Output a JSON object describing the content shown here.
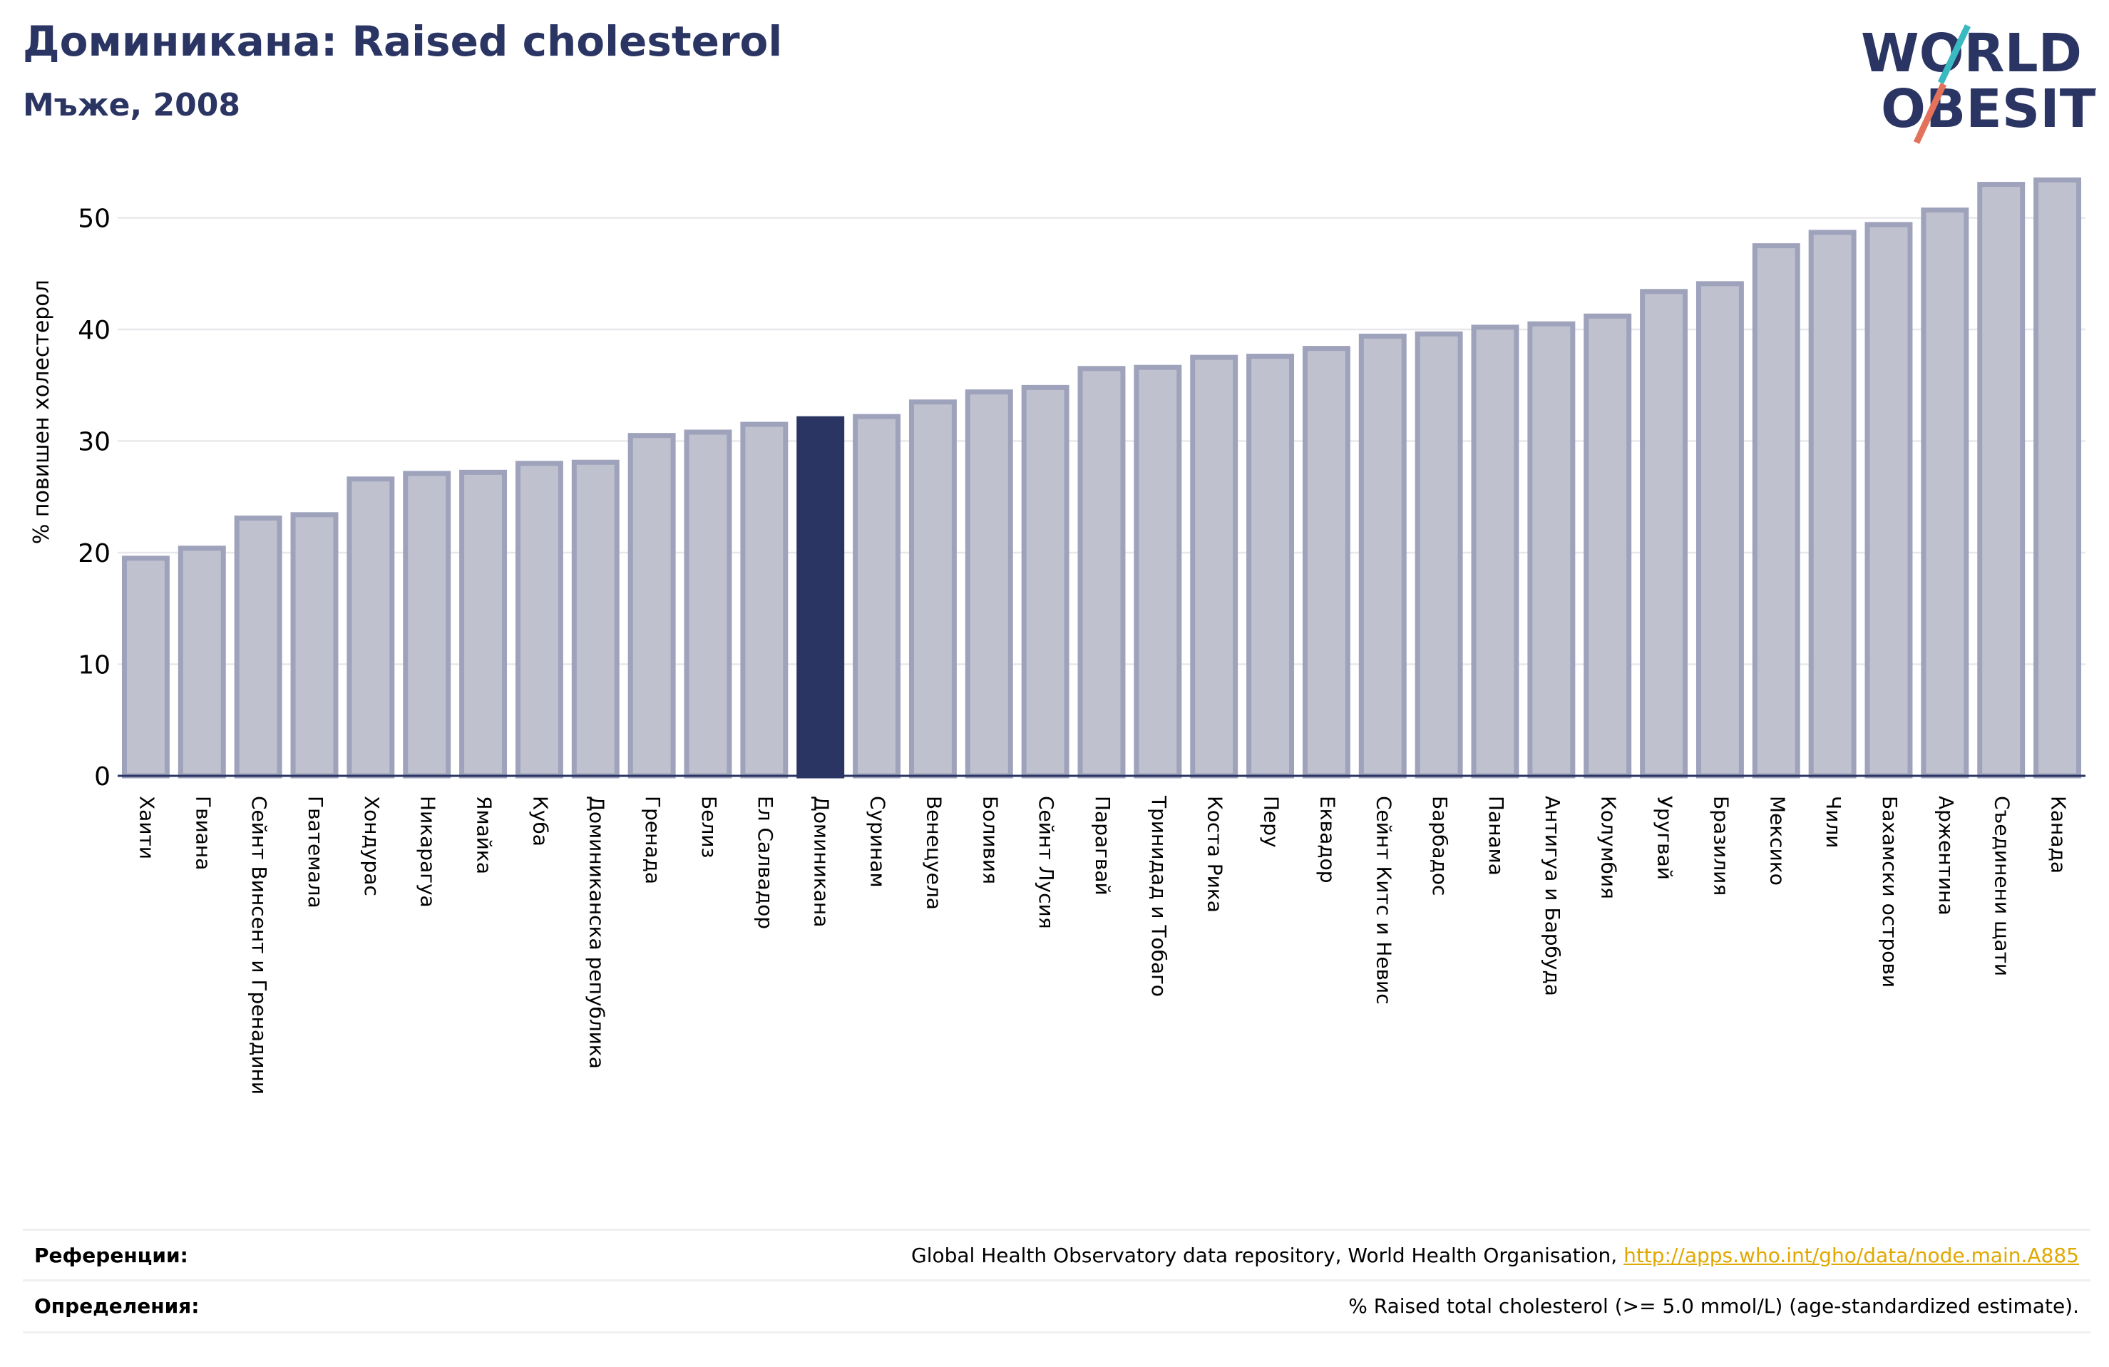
{
  "header": {
    "title": "Доминикана: Raised cholesterol",
    "subtitle": "Мъже, 2008"
  },
  "logo": {
    "line1": "WORLD",
    "line2": "OBESITY"
  },
  "colors": {
    "bar": "#bfc1cf",
    "bar_border": "#9ea2bb",
    "highlight": "#2b3563",
    "brand_teal": "#3ab9c1",
    "brand_red": "#e2725b",
    "link": "#e0a800"
  },
  "chart_data": {
    "type": "bar",
    "title": "Доминикана: Raised cholesterol",
    "subtitle": "Мъже, 2008",
    "ylabel": "% повишен холестерол",
    "xlabel": "",
    "ylim": [
      0,
      55
    ],
    "yticks": [
      0,
      10,
      20,
      30,
      40,
      50
    ],
    "grid": true,
    "highlight": "Доминикана",
    "categories": [
      "Хаити",
      "Гвиана",
      "Сейнт Винсент и Гренадини",
      "Гватемала",
      "Хондурас",
      "Никарагуа",
      "Ямайка",
      "Куба",
      "Доминиканска република",
      "Гренада",
      "Белиз",
      "Ел Салвадор",
      "Доминикана",
      "Суринам",
      "Венецуела",
      "Боливия",
      "Сейнт Лусия",
      "Парагвай",
      "Тринидад и Тобаго",
      "Коста Рика",
      "Перу",
      "Еквадор",
      "Сейнт Китс и Невис",
      "Барбадос",
      "Панама",
      "Антигуа и Барбуда",
      "Колумбия",
      "Уругвай",
      "Бразилия",
      "Мексико",
      "Чили",
      "Бахамски острови",
      "Аржентина",
      "Съединени щати",
      "Канада"
    ],
    "values": [
      19.5,
      20.4,
      23.1,
      23.4,
      26.6,
      27.1,
      27.2,
      28.0,
      28.1,
      30.5,
      30.8,
      31.5,
      32.0,
      32.2,
      33.5,
      34.4,
      34.8,
      36.5,
      36.6,
      37.5,
      37.6,
      38.3,
      39.4,
      39.6,
      40.2,
      40.5,
      41.2,
      43.4,
      44.1,
      47.5,
      48.7,
      49.4,
      50.7,
      53.0,
      53.4
    ]
  },
  "footer": {
    "references_label": "Референции:",
    "references_text": "Global Health Observatory data repository, World Health Organisation, ",
    "references_link": "http://apps.who.int/gho/data/node.main.A885",
    "definitions_label": "Определения:",
    "definitions_text": "% Raised total cholesterol (>= 5.0 mmol/L) (age-standardized estimate)."
  }
}
